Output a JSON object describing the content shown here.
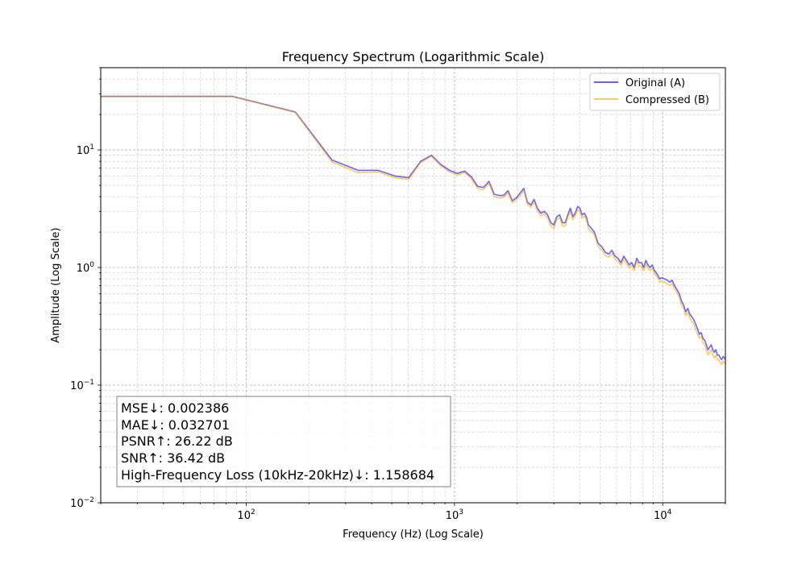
{
  "chart_data": {
    "type": "line",
    "title": "Frequency Spectrum (Logarithmic Scale)",
    "xlabel": "Frequency (Hz) (Log Scale)",
    "ylabel": "Amplitude (Log Scale)",
    "xscale": "log",
    "yscale": "log",
    "xlim": [
      20,
      20000
    ],
    "ylim": [
      0.01,
      50
    ],
    "grid": true,
    "legend_position": "top-right",
    "x_ticks": [
      {
        "value": 100,
        "base": "10",
        "exp": "2"
      },
      {
        "value": 1000,
        "base": "10",
        "exp": "3"
      },
      {
        "value": 10000,
        "base": "10",
        "exp": "4"
      }
    ],
    "y_ticks": [
      {
        "value": 0.01,
        "base": "10",
        "exp": "−2"
      },
      {
        "value": 0.1,
        "base": "10",
        "exp": "−1"
      },
      {
        "value": 1,
        "base": "10",
        "exp": "0"
      },
      {
        "value": 10,
        "base": "10",
        "exp": "1"
      }
    ],
    "x": [
      20,
      86,
      172,
      258,
      344,
      430,
      516,
      602,
      688,
      775,
      861,
      947,
      1033,
      1119,
      1205,
      1291,
      1378,
      1464,
      1550,
      1636,
      1722,
      1808,
      1894,
      1980,
      2067,
      2153,
      2239,
      2325,
      2411,
      2500,
      2600,
      2700,
      2800,
      2900,
      3000,
      3100,
      3200,
      3300,
      3400,
      3500,
      3600,
      3700,
      3800,
      3900,
      4000,
      4100,
      4200,
      4300,
      4400,
      4500,
      4700,
      4900,
      5100,
      5300,
      5500,
      5700,
      5900,
      6100,
      6300,
      6500,
      6700,
      6900,
      7100,
      7300,
      7500,
      7700,
      7900,
      8100,
      8300,
      8500,
      8700,
      8900,
      9100,
      9300,
      9500,
      9700,
      9900,
      10200,
      10500,
      10800,
      11100,
      11400,
      11700,
      12000,
      12300,
      12600,
      12900,
      13200,
      13500,
      13800,
      14100,
      14400,
      14700,
      15000,
      15300,
      15600,
      15900,
      16200,
      16500,
      16800,
      17100,
      17400,
      17700,
      18000,
      18300,
      18600,
      18900,
      19200,
      19500,
      19800,
      20000
    ],
    "series": [
      {
        "name": "Original (A)",
        "color": "#0000ff",
        "values": [
          28.5,
          28.5,
          21,
          8.2,
          6.7,
          6.7,
          6.0,
          5.8,
          8.0,
          9.0,
          7.5,
          6.7,
          6.3,
          6.6,
          5.9,
          4.9,
          4.8,
          5.4,
          4.2,
          4.1,
          4.1,
          4.5,
          3.7,
          3.9,
          4.3,
          4.7,
          3.6,
          3.4,
          3.8,
          3.2,
          2.9,
          3.0,
          2.8,
          2.4,
          2.3,
          2.7,
          2.8,
          2.4,
          2.4,
          2.8,
          3.2,
          2.7,
          2.9,
          3.3,
          3.2,
          2.8,
          2.9,
          2.7,
          2.3,
          2.2,
          2.0,
          1.6,
          1.5,
          1.35,
          1.3,
          1.4,
          1.25,
          1.2,
          1.1,
          1.25,
          1.15,
          1.05,
          1.1,
          1.0,
          1.2,
          1.1,
          1.1,
          1.0,
          1.15,
          1.05,
          1.0,
          1.05,
          0.95,
          0.9,
          0.85,
          0.8,
          0.82,
          0.8,
          0.78,
          0.75,
          0.78,
          0.7,
          0.65,
          0.6,
          0.52,
          0.48,
          0.42,
          0.45,
          0.4,
          0.38,
          0.36,
          0.33,
          0.3,
          0.27,
          0.28,
          0.25,
          0.24,
          0.22,
          0.2,
          0.21,
          0.22,
          0.2,
          0.19,
          0.2,
          0.18,
          0.18,
          0.17,
          0.165,
          0.175,
          0.17,
          0.165
        ]
      },
      {
        "name": "Compressed (B)",
        "color": "#ffa500",
        "values": [
          28.3,
          28.3,
          20.8,
          7.9,
          6.4,
          6.5,
          5.8,
          5.6,
          7.8,
          8.8,
          7.3,
          6.5,
          6.1,
          6.4,
          5.7,
          4.7,
          4.6,
          5.2,
          4.0,
          3.9,
          3.95,
          4.3,
          3.55,
          3.75,
          4.1,
          4.5,
          3.45,
          3.25,
          3.6,
          3.05,
          2.75,
          2.85,
          2.65,
          2.25,
          2.15,
          2.55,
          2.65,
          2.25,
          2.25,
          2.65,
          3.0,
          2.55,
          2.75,
          3.1,
          3.0,
          2.65,
          2.75,
          2.55,
          2.15,
          2.05,
          1.9,
          1.5,
          1.42,
          1.27,
          1.22,
          1.32,
          1.18,
          1.13,
          1.04,
          1.18,
          1.08,
          0.99,
          1.04,
          0.94,
          1.13,
          1.03,
          1.03,
          0.94,
          1.08,
          0.99,
          0.94,
          0.99,
          0.9,
          0.85,
          0.8,
          0.75,
          0.77,
          0.75,
          0.73,
          0.7,
          0.73,
          0.66,
          0.61,
          0.56,
          0.48,
          0.45,
          0.39,
          0.42,
          0.37,
          0.35,
          0.33,
          0.3,
          0.27,
          0.25,
          0.26,
          0.23,
          0.22,
          0.2,
          0.18,
          0.19,
          0.2,
          0.18,
          0.17,
          0.18,
          0.165,
          0.165,
          0.155,
          0.15,
          0.16,
          0.155,
          0.15
        ]
      }
    ],
    "annotation_lines": [
      "MSE↓: 0.002386",
      "MAE↓: 0.032701",
      "PSNR↑: 26.22 dB",
      "SNR↑: 36.42 dB",
      "High-Frequency Loss (10kHz-20kHz)↓: 1.158684"
    ]
  }
}
